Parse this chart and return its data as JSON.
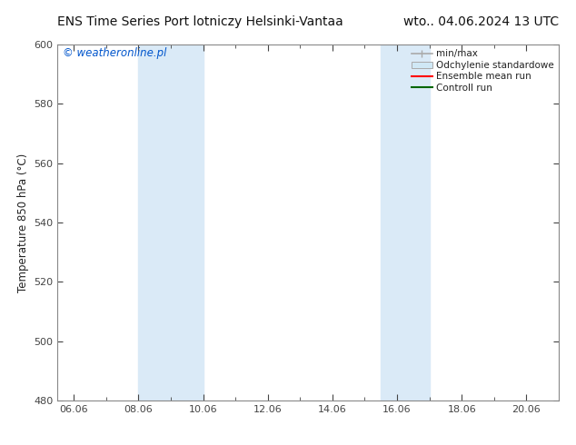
{
  "title_left": "ENS Time Series Port lotniczy Helsinki-Vantaa",
  "title_right": "wto.. 04.06.2024 13 UTC",
  "ylabel": "Temperature 850 hPa (°C)",
  "watermark": "© weatheronline.pl",
  "watermark_color": "#0055cc",
  "ylim": [
    480,
    600
  ],
  "yticks": [
    480,
    500,
    520,
    540,
    560,
    580,
    600
  ],
  "xlim_start": 5.5,
  "xlim_end": 21.0,
  "xticks": [
    6,
    8,
    10,
    12,
    14,
    16,
    18,
    20
  ],
  "xtick_labels": [
    "06.06",
    "08.06",
    "10.06",
    "12.06",
    "14.06",
    "16.06",
    "18.06",
    "20.06"
  ],
  "shaded_bands": [
    {
      "x_start": 8.0,
      "x_end": 10.0
    },
    {
      "x_start": 15.5,
      "x_end": 17.0
    }
  ],
  "band_color": "#daeaf7",
  "background_color": "#ffffff",
  "plot_bg_color": "#ffffff",
  "spine_color": "#888888",
  "tick_color": "#444444",
  "label_color": "#222222",
  "title_fontsize": 10,
  "axis_label_fontsize": 8.5,
  "tick_fontsize": 8,
  "watermark_fontsize": 8.5,
  "legend_fontsize": 7.5,
  "minmax_color": "#aaaaaa",
  "std_facecolor": "#d0e8f5",
  "std_edgecolor": "#aaaaaa",
  "ens_color": "#ff0000",
  "ctrl_color": "#006600"
}
